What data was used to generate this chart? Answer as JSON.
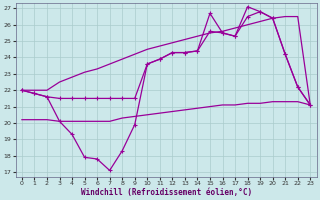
{
  "title": "",
  "xlabel": "Windchill (Refroidissement éolien,°C)",
  "ylabel": "",
  "bg_color": "#cce8ea",
  "grid_color": "#aacccc",
  "line_color": "#990099",
  "xlim": [
    -0.5,
    23.5
  ],
  "ylim": [
    17,
    27
  ],
  "yticks": [
    17,
    18,
    19,
    20,
    21,
    22,
    23,
    24,
    25,
    26,
    27
  ],
  "xticks": [
    0,
    1,
    2,
    3,
    4,
    5,
    6,
    7,
    8,
    9,
    10,
    11,
    12,
    13,
    14,
    15,
    16,
    17,
    18,
    19,
    20,
    21,
    22,
    23
  ],
  "series": [
    {
      "x": [
        0,
        1,
        2,
        3,
        4,
        5,
        6,
        7,
        8,
        9,
        10,
        11,
        12,
        13,
        14,
        15,
        16,
        17,
        18,
        19,
        20,
        21,
        22,
        23
      ],
      "y": [
        22.0,
        22.0,
        22.0,
        22.5,
        22.8,
        23.1,
        23.3,
        23.6,
        23.9,
        24.2,
        24.5,
        24.7,
        24.9,
        25.1,
        25.3,
        25.5,
        25.6,
        25.8,
        26.0,
        26.2,
        26.4,
        26.5,
        26.5,
        21.1
      ],
      "marker": false,
      "linewidth": 0.9
    },
    {
      "x": [
        0,
        1,
        2,
        3,
        4,
        5,
        6,
        7,
        8,
        9,
        10,
        11,
        12,
        13,
        14,
        15,
        16,
        17,
        18,
        19,
        20,
        21,
        22,
        23
      ],
      "y": [
        22.0,
        21.8,
        21.6,
        20.1,
        19.3,
        17.9,
        17.8,
        17.1,
        18.3,
        19.9,
        23.6,
        23.9,
        24.3,
        24.3,
        24.4,
        26.7,
        25.5,
        25.3,
        27.1,
        26.8,
        26.4,
        24.2,
        22.2,
        21.1
      ],
      "marker": true,
      "linewidth": 0.9
    },
    {
      "x": [
        0,
        1,
        2,
        3,
        4,
        5,
        6,
        7,
        8,
        9,
        10,
        11,
        12,
        13,
        14,
        15,
        16,
        17,
        18,
        19,
        20,
        21,
        22,
        23
      ],
      "y": [
        22.0,
        21.8,
        21.6,
        21.5,
        21.5,
        21.5,
        21.5,
        21.5,
        21.5,
        21.5,
        23.6,
        23.9,
        24.3,
        24.3,
        24.4,
        25.6,
        25.5,
        25.3,
        26.5,
        26.8,
        26.4,
        24.2,
        22.2,
        21.1
      ],
      "marker": true,
      "linewidth": 0.9
    },
    {
      "x": [
        0,
        1,
        2,
        3,
        4,
        5,
        6,
        7,
        8,
        9,
        10,
        11,
        12,
        13,
        14,
        15,
        16,
        17,
        18,
        19,
        20,
        21,
        22,
        23
      ],
      "y": [
        20.2,
        20.2,
        20.2,
        20.1,
        20.1,
        20.1,
        20.1,
        20.1,
        20.3,
        20.4,
        20.5,
        20.6,
        20.7,
        20.8,
        20.9,
        21.0,
        21.1,
        21.1,
        21.2,
        21.2,
        21.3,
        21.3,
        21.3,
        21.1
      ],
      "marker": false,
      "linewidth": 0.9
    }
  ]
}
